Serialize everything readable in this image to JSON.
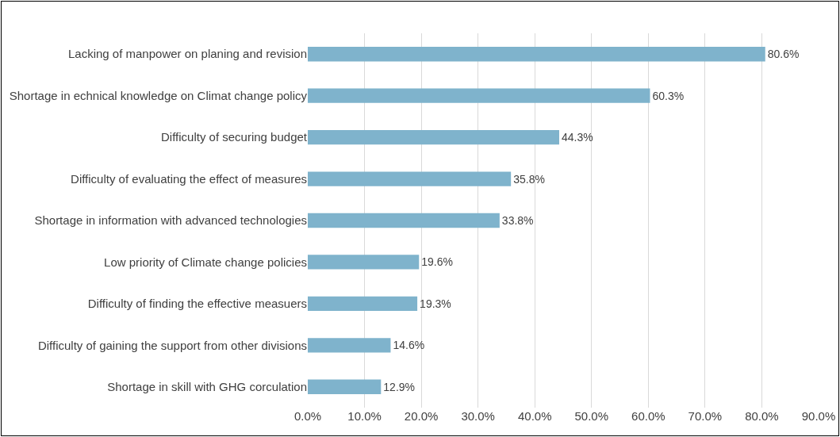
{
  "chart_data": {
    "type": "bar",
    "orientation": "horizontal",
    "categories": [
      "Lacking of manpower on planing and revision",
      "Shortage in echnical knowledge on Climat change policy",
      "Difficulty of securing budget",
      "Difficulty of evaluating the effect of measures",
      "Shortage in information with advanced technologies",
      "Low priority of Climate change policies",
      "Difficulty of finding the effective measuers",
      "Difficulty of gaining the support from other divisions",
      "Shortage in skill with GHG corculation"
    ],
    "values": [
      80.6,
      60.3,
      44.3,
      35.8,
      33.8,
      19.6,
      19.3,
      14.6,
      12.9
    ],
    "value_labels": [
      "80.6%",
      "60.3%",
      "44.3%",
      "35.8%",
      "33.8%",
      "19.6%",
      "19.3%",
      "14.6%",
      "12.9%"
    ],
    "color": "#7fb3cc",
    "xlim": [
      0,
      90
    ],
    "xticks": [
      {
        "value": 0,
        "label": "0.0%"
      },
      {
        "value": 10,
        "label": "10.0%"
      },
      {
        "value": 20,
        "label": "20.0%"
      },
      {
        "value": 30,
        "label": "30.0%"
      },
      {
        "value": 40,
        "label": "40.0%"
      },
      {
        "value": 50,
        "label": "50.0%"
      },
      {
        "value": 60,
        "label": "60.0%"
      },
      {
        "value": 70,
        "label": "70.0%"
      },
      {
        "value": 80,
        "label": "80.0%"
      },
      {
        "value": 90,
        "label": "90.0%"
      }
    ],
    "grid": "x",
    "legend": false
  }
}
